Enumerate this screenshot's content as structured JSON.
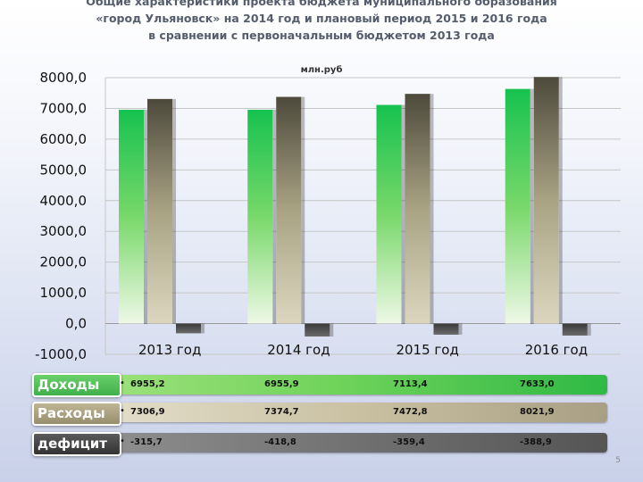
{
  "title": {
    "line1": "Общие характеристики проекта бюджета муниципального образования",
    "line2": "«город Ульяновск» на 2014 год и плановый период 2015 и 2016 года",
    "line3": "в сравнении с первоначальным бюджетом 2013 года"
  },
  "chart_data": {
    "type": "bar",
    "unit_label": "млн.руб",
    "categories": [
      "2013 год",
      "2014 год",
      "2015 год",
      "2016 год"
    ],
    "series": [
      {
        "name": "Доходы",
        "values": [
          6955.2,
          6955.9,
          7113.4,
          7633.0
        ],
        "display": [
          "6955,2",
          "6955,9",
          "7113,4",
          "7633,0"
        ],
        "color": "#2fbe55"
      },
      {
        "name": "Расходы",
        "values": [
          7306.9,
          7374.7,
          7472.8,
          8021.9
        ],
        "display": [
          "7306,9",
          "7374,7",
          "7472,8",
          "8021,9"
        ],
        "color": "#8f8a6e"
      },
      {
        "name": "дефицит",
        "values": [
          -315.7,
          -418.8,
          -359.4,
          -388.9
        ],
        "display": [
          "-315,7",
          "-418,8",
          "-359,4",
          "-388,9"
        ],
        "color": "#555555"
      }
    ],
    "ylim": [
      -1000,
      8000
    ],
    "yticks": [
      "8000,0",
      "7000,0",
      "6000,0",
      "5000,0",
      "4000,0",
      "3000,0",
      "2000,0",
      "1000,0",
      "0,0",
      "-1000,0"
    ],
    "grid": true,
    "legend": "table-below"
  },
  "footer": {
    "slide_number": "5"
  }
}
